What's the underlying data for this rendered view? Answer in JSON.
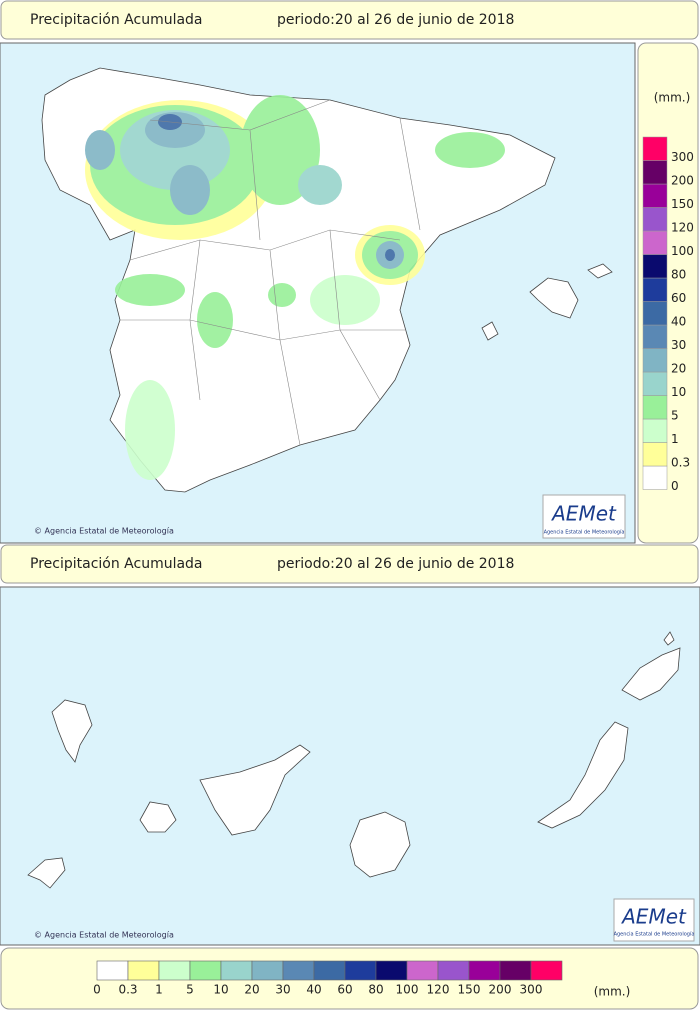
{
  "header": {
    "title": "Precipitación Acumulada",
    "period": "periodo:20 al 26 de junio de 2018"
  },
  "credit": "© Agencia Estatal de Meteorología",
  "logo": {
    "name": "AEMet",
    "subtitle": "Agencia Estatal de Meteorología"
  },
  "legend": {
    "unit": "(mm.)",
    "items": [
      {
        "label": "0",
        "color": "#ffffff"
      },
      {
        "label": "0.3",
        "color": "#ffff99"
      },
      {
        "label": "1",
        "color": "#ccffcc"
      },
      {
        "label": "5",
        "color": "#99f099"
      },
      {
        "label": "10",
        "color": "#99d4cc"
      },
      {
        "label": "20",
        "color": "#80b4c4"
      },
      {
        "label": "30",
        "color": "#5a88b4"
      },
      {
        "label": "40",
        "color": "#3c6aa4"
      },
      {
        "label": "60",
        "color": "#1e3c9c"
      },
      {
        "label": "80",
        "color": "#0a0a6e"
      },
      {
        "label": "100",
        "color": "#cc66cc"
      },
      {
        "label": "120",
        "color": "#9955cc"
      },
      {
        "label": "150",
        "color": "#990099"
      },
      {
        "label": "200",
        "color": "#660066"
      },
      {
        "label": "300",
        "color": "#ff0066"
      }
    ]
  }
}
